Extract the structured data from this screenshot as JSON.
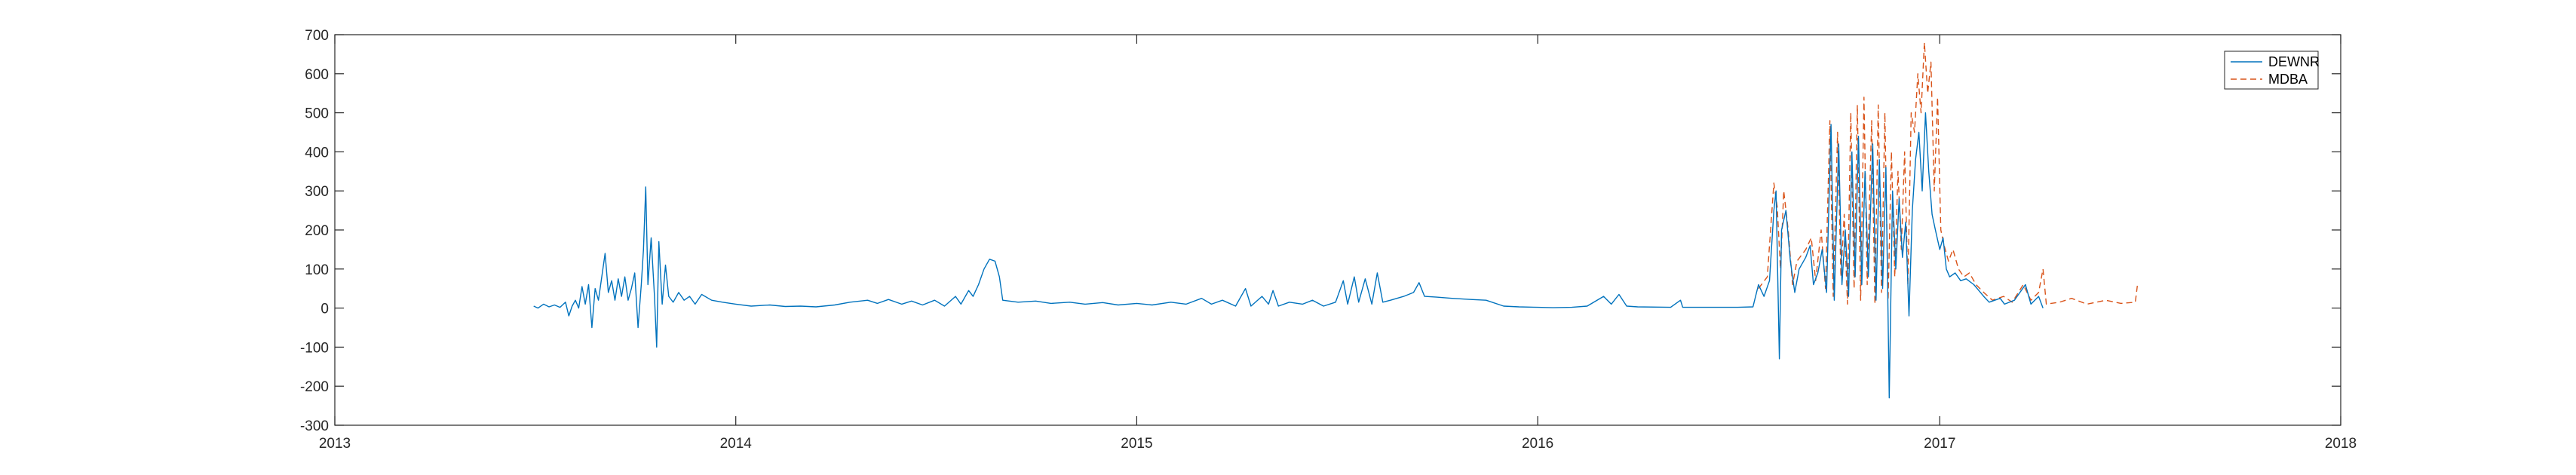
{
  "chart_data": {
    "type": "line",
    "title": "",
    "xlabel": "",
    "ylabel": "",
    "xlim": [
      "2013-01-01",
      "2018-01-01"
    ],
    "ylim": [
      -300,
      700
    ],
    "x_ticks": [
      "2013",
      "2014",
      "2015",
      "2016",
      "2017",
      "2018"
    ],
    "y_ticks": [
      700,
      600,
      500,
      400,
      300,
      200,
      100,
      0,
      -100,
      -200,
      -300
    ],
    "grid": false,
    "legend_position": "top-right",
    "series": [
      {
        "name": "DEWNR",
        "color": "#0072BD",
        "style": "solid",
        "points": [
          [
            "2013-07-01",
            5
          ],
          [
            "2013-07-05",
            0
          ],
          [
            "2013-07-10",
            10
          ],
          [
            "2013-07-15",
            3
          ],
          [
            "2013-07-20",
            8
          ],
          [
            "2013-07-25",
            2
          ],
          [
            "2013-07-30",
            15
          ],
          [
            "2013-08-02",
            -20
          ],
          [
            "2013-08-05",
            5
          ],
          [
            "2013-08-08",
            20
          ],
          [
            "2013-08-11",
            0
          ],
          [
            "2013-08-14",
            55
          ],
          [
            "2013-08-17",
            10
          ],
          [
            "2013-08-20",
            60
          ],
          [
            "2013-08-23",
            -50
          ],
          [
            "2013-08-26",
            50
          ],
          [
            "2013-08-29",
            20
          ],
          [
            "2013-09-01",
            80
          ],
          [
            "2013-09-04",
            140
          ],
          [
            "2013-09-07",
            40
          ],
          [
            "2013-09-10",
            70
          ],
          [
            "2013-09-13",
            20
          ],
          [
            "2013-09-16",
            75
          ],
          [
            "2013-09-19",
            30
          ],
          [
            "2013-09-22",
            80
          ],
          [
            "2013-09-25",
            20
          ],
          [
            "2013-09-28",
            50
          ],
          [
            "2013-10-01",
            90
          ],
          [
            "2013-10-04",
            -50
          ],
          [
            "2013-10-07",
            60
          ],
          [
            "2013-10-09",
            150
          ],
          [
            "2013-10-11",
            310
          ],
          [
            "2013-10-13",
            60
          ],
          [
            "2013-10-16",
            180
          ],
          [
            "2013-10-19",
            30
          ],
          [
            "2013-10-21",
            -100
          ],
          [
            "2013-10-23",
            170
          ],
          [
            "2013-10-26",
            10
          ],
          [
            "2013-10-29",
            110
          ],
          [
            "2013-11-01",
            30
          ],
          [
            "2013-11-05",
            15
          ],
          [
            "2013-11-10",
            40
          ],
          [
            "2013-11-15",
            20
          ],
          [
            "2013-11-20",
            30
          ],
          [
            "2013-11-25",
            10
          ],
          [
            "2013-12-01",
            35
          ],
          [
            "2013-12-10",
            20
          ],
          [
            "2013-12-20",
            15
          ],
          [
            "2014-01-01",
            10
          ],
          [
            "2014-01-15",
            5
          ],
          [
            "2014-02-01",
            8
          ],
          [
            "2014-02-15",
            4
          ],
          [
            "2014-03-01",
            5
          ],
          [
            "2014-03-15",
            3
          ],
          [
            "2014-04-01",
            8
          ],
          [
            "2014-04-15",
            15
          ],
          [
            "2014-05-01",
            20
          ],
          [
            "2014-05-10",
            12
          ],
          [
            "2014-05-20",
            22
          ],
          [
            "2014-06-01",
            10
          ],
          [
            "2014-06-10",
            18
          ],
          [
            "2014-06-20",
            8
          ],
          [
            "2014-07-01",
            20
          ],
          [
            "2014-07-10",
            5
          ],
          [
            "2014-07-20",
            30
          ],
          [
            "2014-07-25",
            10
          ],
          [
            "2014-08-01",
            45
          ],
          [
            "2014-08-05",
            30
          ],
          [
            "2014-08-10",
            60
          ],
          [
            "2014-08-15",
            100
          ],
          [
            "2014-08-20",
            125
          ],
          [
            "2014-08-25",
            120
          ],
          [
            "2014-08-29",
            80
          ],
          [
            "2014-09-01",
            20
          ],
          [
            "2014-09-15",
            15
          ],
          [
            "2014-10-01",
            18
          ],
          [
            "2014-10-15",
            12
          ],
          [
            "2014-11-01",
            15
          ],
          [
            "2014-11-15",
            10
          ],
          [
            "2014-12-01",
            14
          ],
          [
            "2014-12-15",
            8
          ],
          [
            "2015-01-01",
            12
          ],
          [
            "2015-01-15",
            8
          ],
          [
            "2015-02-01",
            15
          ],
          [
            "2015-02-15",
            10
          ],
          [
            "2015-03-01",
            25
          ],
          [
            "2015-03-10",
            10
          ],
          [
            "2015-03-20",
            20
          ],
          [
            "2015-04-01",
            5
          ],
          [
            "2015-04-10",
            50
          ],
          [
            "2015-04-15",
            5
          ],
          [
            "2015-04-25",
            30
          ],
          [
            "2015-05-01",
            10
          ],
          [
            "2015-05-05",
            45
          ],
          [
            "2015-05-10",
            5
          ],
          [
            "2015-05-20",
            15
          ],
          [
            "2015-06-01",
            10
          ],
          [
            "2015-06-10",
            20
          ],
          [
            "2015-06-20",
            5
          ],
          [
            "2015-07-01",
            15
          ],
          [
            "2015-07-08",
            70
          ],
          [
            "2015-07-12",
            10
          ],
          [
            "2015-07-18",
            80
          ],
          [
            "2015-07-22",
            15
          ],
          [
            "2015-07-28",
            75
          ],
          [
            "2015-08-03",
            10
          ],
          [
            "2015-08-08",
            90
          ],
          [
            "2015-08-13",
            15
          ],
          [
            "2015-08-20",
            20
          ],
          [
            "2015-09-01",
            30
          ],
          [
            "2015-09-10",
            40
          ],
          [
            "2015-09-15",
            65
          ],
          [
            "2015-09-20",
            30
          ],
          [
            "2015-10-01",
            28
          ],
          [
            "2015-10-15",
            25
          ],
          [
            "2015-11-01",
            22
          ],
          [
            "2015-11-15",
            20
          ],
          [
            "2015-12-01",
            5
          ],
          [
            "2015-12-15",
            3
          ],
          [
            "2016-01-01",
            2
          ],
          [
            "2016-01-15",
            1
          ],
          [
            "2016-02-01",
            2
          ],
          [
            "2016-02-15",
            5
          ],
          [
            "2016-03-01",
            30
          ],
          [
            "2016-03-08",
            10
          ],
          [
            "2016-03-15",
            35
          ],
          [
            "2016-03-22",
            5
          ],
          [
            "2016-04-01",
            3
          ],
          [
            "2016-05-01",
            2
          ],
          [
            "2016-05-10",
            20
          ],
          [
            "2016-05-12",
            2
          ],
          [
            "2016-06-01",
            2
          ],
          [
            "2016-07-01",
            2
          ],
          [
            "2016-07-15",
            3
          ],
          [
            "2016-07-20",
            60
          ],
          [
            "2016-07-25",
            30
          ],
          [
            "2016-07-30",
            70
          ],
          [
            "2016-08-03",
            250
          ],
          [
            "2016-08-05",
            300
          ],
          [
            "2016-08-08",
            -130
          ],
          [
            "2016-08-10",
            200
          ],
          [
            "2016-08-14",
            250
          ],
          [
            "2016-08-18",
            120
          ],
          [
            "2016-08-22",
            40
          ],
          [
            "2016-08-26",
            100
          ],
          [
            "2016-09-01",
            130
          ],
          [
            "2016-09-05",
            160
          ],
          [
            "2016-09-08",
            60
          ],
          [
            "2016-09-12",
            90
          ],
          [
            "2016-09-16",
            150
          ],
          [
            "2016-09-20",
            40
          ],
          [
            "2016-09-24",
            470
          ],
          [
            "2016-09-27",
            20
          ],
          [
            "2016-10-01",
            420
          ],
          [
            "2016-10-04",
            60
          ],
          [
            "2016-10-07",
            200
          ],
          [
            "2016-10-10",
            30
          ],
          [
            "2016-10-13",
            400
          ],
          [
            "2016-10-16",
            80
          ],
          [
            "2016-10-19",
            440
          ],
          [
            "2016-10-22",
            60
          ],
          [
            "2016-10-25",
            350
          ],
          [
            "2016-10-28",
            80
          ],
          [
            "2016-11-01",
            420
          ],
          [
            "2016-11-04",
            20
          ],
          [
            "2016-11-07",
            380
          ],
          [
            "2016-11-10",
            50
          ],
          [
            "2016-11-13",
            360
          ],
          [
            "2016-11-16",
            -230
          ],
          [
            "2016-11-19",
            300
          ],
          [
            "2016-11-22",
            100
          ],
          [
            "2016-11-25",
            280
          ],
          [
            "2016-11-28",
            130
          ],
          [
            "2016-12-01",
            220
          ],
          [
            "2016-12-04",
            -20
          ],
          [
            "2016-12-07",
            250
          ],
          [
            "2016-12-10",
            380
          ],
          [
            "2016-12-13",
            450
          ],
          [
            "2016-12-16",
            300
          ],
          [
            "2016-12-19",
            500
          ],
          [
            "2016-12-22",
            350
          ],
          [
            "2016-12-25",
            240
          ],
          [
            "2016-12-28",
            200
          ],
          [
            "2017-01-01",
            150
          ],
          [
            "2017-01-04",
            180
          ],
          [
            "2017-01-07",
            100
          ],
          [
            "2017-01-10",
            80
          ],
          [
            "2017-01-15",
            90
          ],
          [
            "2017-01-20",
            70
          ],
          [
            "2017-01-25",
            75
          ],
          [
            "2017-02-01",
            60
          ],
          [
            "2017-02-10",
            30
          ],
          [
            "2017-02-15",
            15
          ],
          [
            "2017-02-25",
            25
          ],
          [
            "2017-03-01",
            10
          ],
          [
            "2017-03-10",
            20
          ],
          [
            "2017-03-20",
            60
          ],
          [
            "2017-03-25",
            10
          ],
          [
            "2017-04-01",
            30
          ],
          [
            "2017-04-05",
            0
          ]
        ]
      },
      {
        "name": "MDBA",
        "color": "#D95319",
        "style": "dashed",
        "points": [
          [
            "2016-07-20",
            50
          ],
          [
            "2016-07-28",
            80
          ],
          [
            "2016-08-03",
            320
          ],
          [
            "2016-08-06",
            260
          ],
          [
            "2016-08-09",
            100
          ],
          [
            "2016-08-12",
            300
          ],
          [
            "2016-08-16",
            200
          ],
          [
            "2016-08-20",
            60
          ],
          [
            "2016-08-24",
            120
          ],
          [
            "2016-09-01",
            150
          ],
          [
            "2016-09-06",
            180
          ],
          [
            "2016-09-10",
            70
          ],
          [
            "2016-09-15",
            200
          ],
          [
            "2016-09-19",
            50
          ],
          [
            "2016-09-23",
            480
          ],
          [
            "2016-09-26",
            30
          ],
          [
            "2016-09-30",
            450
          ],
          [
            "2016-10-03",
            80
          ],
          [
            "2016-10-06",
            240
          ],
          [
            "2016-10-09",
            10
          ],
          [
            "2016-10-12",
            500
          ],
          [
            "2016-10-15",
            50
          ],
          [
            "2016-10-18",
            520
          ],
          [
            "2016-10-21",
            20
          ],
          [
            "2016-10-24",
            540
          ],
          [
            "2016-10-27",
            60
          ],
          [
            "2016-10-31",
            480
          ],
          [
            "2016-11-03",
            10
          ],
          [
            "2016-11-06",
            520
          ],
          [
            "2016-11-09",
            40
          ],
          [
            "2016-11-12",
            500
          ],
          [
            "2016-11-15",
            20
          ],
          [
            "2016-11-18",
            400
          ],
          [
            "2016-11-21",
            80
          ],
          [
            "2016-11-24",
            350
          ],
          [
            "2016-11-27",
            150
          ],
          [
            "2016-11-30",
            400
          ],
          [
            "2016-12-03",
            60
          ],
          [
            "2016-12-06",
            500
          ],
          [
            "2016-12-09",
            450
          ],
          [
            "2016-12-12",
            600
          ],
          [
            "2016-12-15",
            500
          ],
          [
            "2016-12-18",
            680
          ],
          [
            "2016-12-21",
            550
          ],
          [
            "2016-12-24",
            630
          ],
          [
            "2016-12-27",
            300
          ],
          [
            "2016-12-30",
            540
          ],
          [
            "2017-01-02",
            200
          ],
          [
            "2017-01-05",
            160
          ],
          [
            "2017-01-09",
            120
          ],
          [
            "2017-01-13",
            150
          ],
          [
            "2017-01-18",
            100
          ],
          [
            "2017-01-23",
            80
          ],
          [
            "2017-01-28",
            90
          ],
          [
            "2017-02-03",
            60
          ],
          [
            "2017-02-10",
            40
          ],
          [
            "2017-02-18",
            20
          ],
          [
            "2017-02-28",
            30
          ],
          [
            "2017-03-08",
            15
          ],
          [
            "2017-03-18",
            60
          ],
          [
            "2017-03-25",
            20
          ],
          [
            "2017-04-01",
            40
          ],
          [
            "2017-04-05",
            100
          ],
          [
            "2017-04-08",
            10
          ],
          [
            "2017-04-20",
            15
          ],
          [
            "2017-05-01",
            25
          ],
          [
            "2017-05-15",
            10
          ],
          [
            "2017-06-01",
            20
          ],
          [
            "2017-06-15",
            12
          ],
          [
            "2017-06-28",
            15
          ],
          [
            "2017-06-30",
            60
          ]
        ]
      }
    ]
  }
}
